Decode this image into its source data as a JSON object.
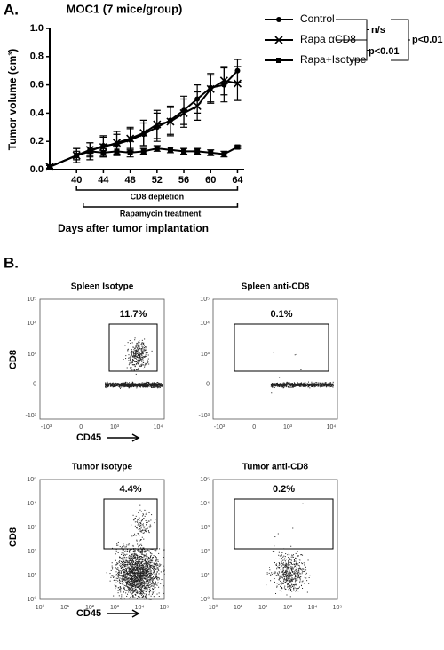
{
  "chart_data": {
    "type": "line",
    "panel_label": "A.",
    "title": "MOC1 (7 mice/group)",
    "x_label": "Days after tumor implantation",
    "y_label": "Tumor volume (cm³)",
    "x": [
      36,
      40,
      42,
      44,
      46,
      48,
      50,
      52,
      54,
      56,
      58,
      60,
      62,
      64
    ],
    "series": [
      {
        "name": "Control",
        "color": "#000000",
        "marker": "circle",
        "values": [
          0.02,
          0.1,
          0.13,
          0.17,
          0.18,
          0.21,
          0.25,
          0.3,
          0.35,
          0.42,
          0.5,
          0.58,
          0.6,
          0.7
        ],
        "errors": [
          0.01,
          0.05,
          0.06,
          0.07,
          0.07,
          0.08,
          0.08,
          0.1,
          0.1,
          0.1,
          0.1,
          0.1,
          0.12,
          0.08
        ]
      },
      {
        "name": "Rapa αCD8",
        "color": "#000000",
        "marker": "x",
        "values": [
          0.02,
          0.1,
          0.14,
          0.16,
          0.19,
          0.22,
          0.26,
          0.32,
          0.34,
          0.4,
          0.45,
          0.57,
          0.63,
          0.61
        ],
        "errors": [
          0.01,
          0.05,
          0.05,
          0.07,
          0.08,
          0.08,
          0.09,
          0.1,
          0.1,
          0.1,
          0.1,
          0.1,
          0.1,
          0.12
        ]
      },
      {
        "name": "Rapa+Isotype",
        "color": "#000000",
        "marker": "square",
        "values": [
          0.02,
          0.1,
          0.13,
          0.12,
          0.13,
          0.12,
          0.13,
          0.15,
          0.14,
          0.13,
          0.13,
          0.12,
          0.11,
          0.16
        ],
        "errors": [
          0.01,
          0.03,
          0.03,
          0.03,
          0.03,
          0.03,
          0.02,
          0.02,
          0.02,
          0.02,
          0.02,
          0.02,
          0.02,
          0.01
        ]
      }
    ],
    "xlim": [
      36,
      65
    ],
    "xticks": [
      40,
      44,
      48,
      52,
      56,
      60,
      64
    ],
    "ylim": [
      0,
      1
    ],
    "yticks": [
      {
        "value": 0,
        "label": "0.0"
      },
      0.2,
      0.4,
      0.6,
      0.8,
      {
        "value": 1,
        "label": "1.0"
      }
    ],
    "annotations": [
      {
        "text": "CD8 depletion",
        "start": 40,
        "end": 64
      },
      {
        "text": "Rapamycin treatment",
        "start": 41,
        "end": 64
      }
    ],
    "significance": [
      "n/s",
      "p<0.01",
      "p<0.01"
    ]
  },
  "panel_b": {
    "label": "B.",
    "y_axis_label": "CD8",
    "x_axis_label": "CD45",
    "plots": [
      {
        "title": "Spleen Isotype",
        "gate_label": "11.7%"
      },
      {
        "title": "Spleen anti-CD8",
        "gate_label": "0.1%"
      },
      {
        "title": "Tumor Isotype",
        "gate_label": "4.4%"
      },
      {
        "title": "Tumor anti-CD8",
        "gate_label": "0.2%"
      }
    ],
    "spleen_x_ticks": [
      "-10³",
      "0",
      "10³",
      "10⁴"
    ],
    "spleen_y_ticks": [
      "10⁵",
      "10⁴",
      "10³",
      "0",
      "-10³"
    ],
    "tumor_ticks": [
      "10⁰",
      "10¹",
      "10²",
      "10³",
      "10⁴",
      "10⁵"
    ]
  }
}
